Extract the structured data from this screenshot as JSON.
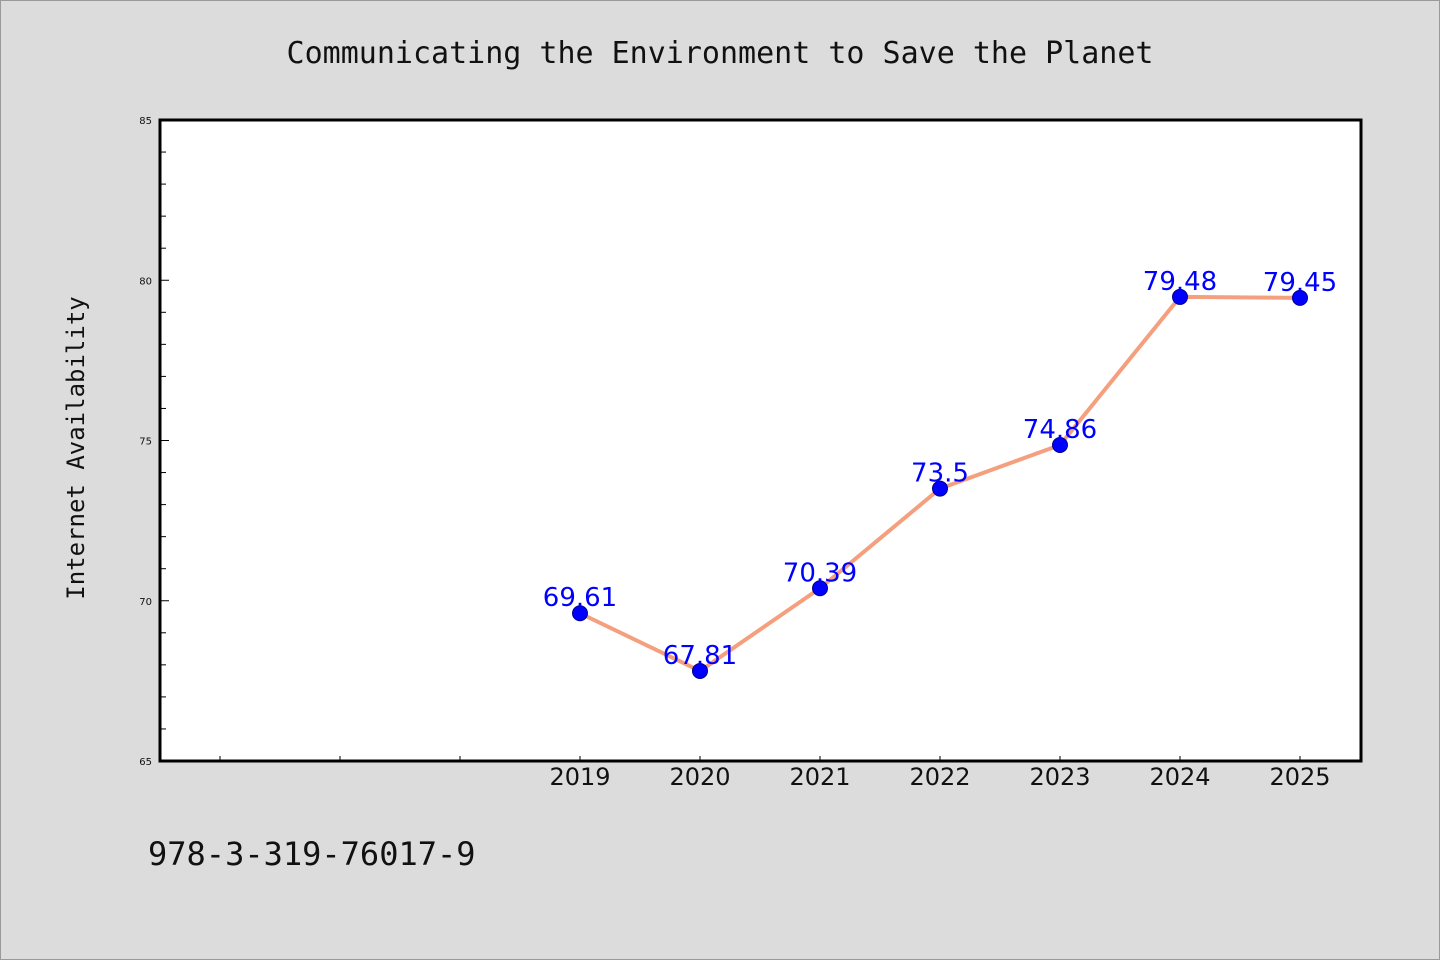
{
  "chart_data": {
    "type": "line",
    "title": "Communicating the Environment to Save the Planet",
    "xlabel": "",
    "ylabel": "Internet Availability",
    "x_slots": [
      "",
      "",
      "",
      "2019",
      "2020",
      "2021",
      "2022",
      "2023",
      "2024",
      "2025"
    ],
    "categories": [
      "2019",
      "2020",
      "2021",
      "2022",
      "2023",
      "2024",
      "2025"
    ],
    "series": [
      {
        "values": [
          69.61,
          67.81,
          70.39,
          73.5,
          74.86,
          79.48,
          79.45
        ]
      }
    ],
    "data_labels": [
      "69.61",
      "67.81",
      "70.39",
      "73.5",
      "74.86",
      "79.48",
      "79.45"
    ],
    "ylim": [
      65,
      85
    ],
    "yticks": [
      65,
      70,
      75,
      80,
      85
    ],
    "grid": false,
    "colors": {
      "line": "#f4a07e",
      "marker": "#0000ff",
      "data_label": "#0000ff",
      "plot_bg": "#ffffff",
      "page_bg": "#dcdcdc"
    }
  },
  "footer": {
    "isbn": "978-3-319-76017-9"
  }
}
